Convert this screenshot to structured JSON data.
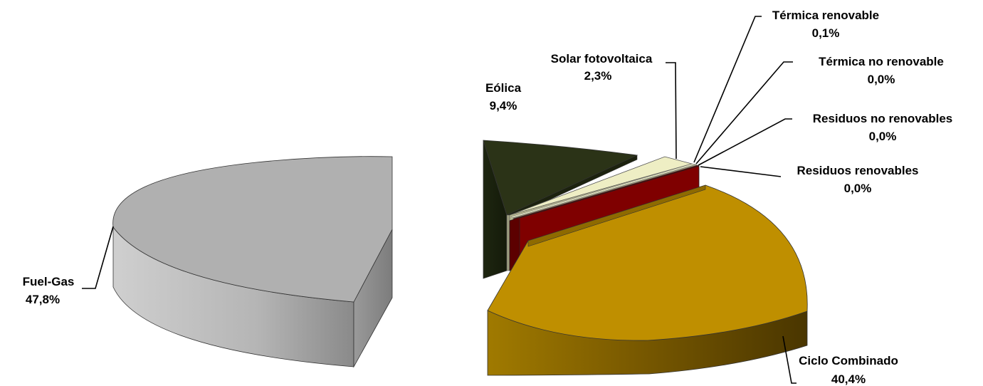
{
  "chart_data": {
    "type": "pie",
    "title": "",
    "slices": [
      {
        "id": "fuel-gas",
        "label": "Fuel-Gas",
        "value_label": "47,8%",
        "value": 47.8,
        "color": "#b0b0b0"
      },
      {
        "id": "ciclo-combinado",
        "label": "Ciclo Combinado",
        "value_label": "40,4%",
        "value": 40.4,
        "color": "#bf8f00"
      },
      {
        "id": "residuos-renovables",
        "label": "Residuos renovables",
        "value_label": "0,0%",
        "value": 0.0,
        "color": "#7f0000"
      },
      {
        "id": "residuos-no-renovables",
        "label": "Residuos no renovables",
        "value_label": "0,0%",
        "value": 0.0,
        "color": "#7f0000"
      },
      {
        "id": "termica-no-renovable",
        "label": "Térmica no renovable",
        "value_label": "0,0%",
        "value": 0.0,
        "color": "#9c9c7a"
      },
      {
        "id": "termica-renovable",
        "label": "Térmica renovable",
        "value_label": "0,1%",
        "value": 0.1,
        "color": "#d8d8b8"
      },
      {
        "id": "solar-fotovoltaica",
        "label": "Solar fotovoltaica",
        "value_label": "2,3%",
        "value": 2.3,
        "color": "#eeeec4"
      },
      {
        "id": "eolica",
        "label": "Eólica",
        "value_label": "9,4%",
        "value": 9.4,
        "color": "#2b3317"
      }
    ]
  }
}
